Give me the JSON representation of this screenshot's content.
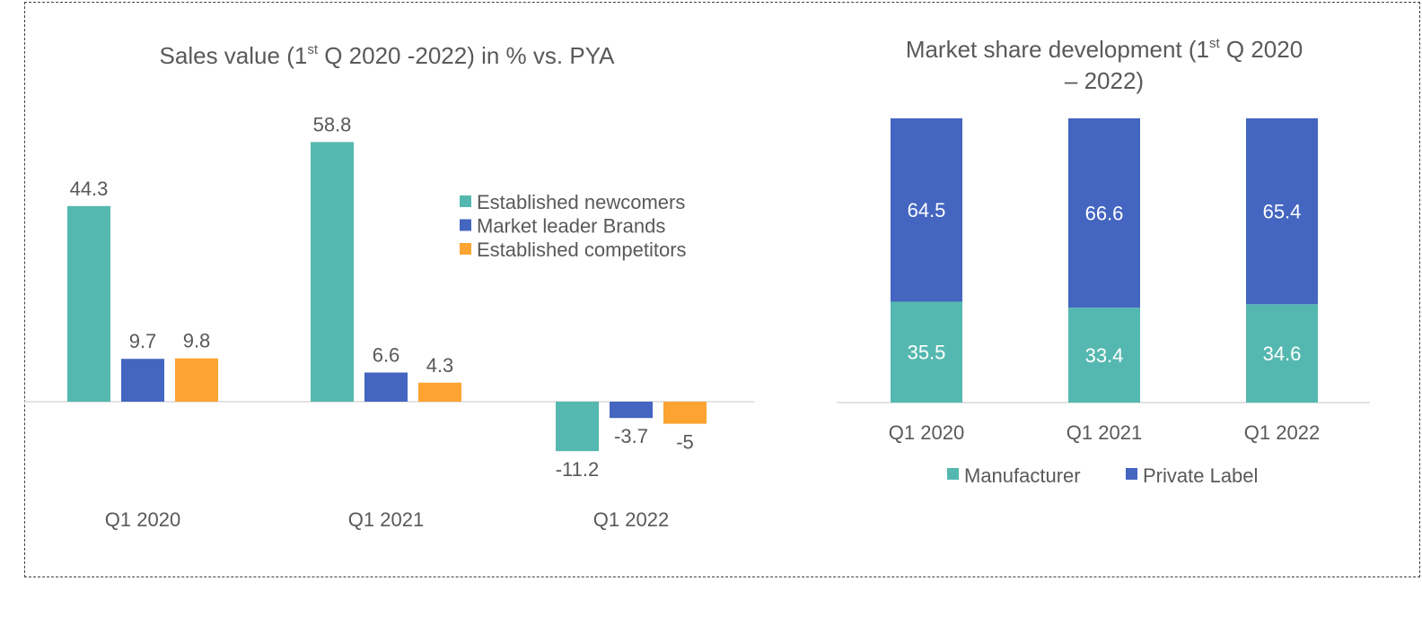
{
  "chart_data": [
    {
      "type": "bar",
      "title": {
        "pre": "Sales value (1",
        "sup": "st",
        "post": " Q 2020 -2022) in % vs. PYA"
      },
      "categories": [
        "Q1 2020",
        "Q1 2021",
        "Q1 2022"
      ],
      "series": [
        {
          "name": "Established newcomers",
          "values": [
            44.3,
            58.8,
            -11.2
          ],
          "labels": [
            "44.3",
            "58.8",
            "-11.2"
          ],
          "color": "#55b8b0"
        },
        {
          "name": "Market leader Brands",
          "values": [
            9.7,
            6.6,
            -3.7
          ],
          "labels": [
            "9.7",
            "6.6",
            "-3.7"
          ],
          "color": "#4465c0"
        },
        {
          "name": "Established competitors",
          "values": [
            9.8,
            4.3,
            -5
          ],
          "labels": [
            "9.8",
            "4.3",
            "-5"
          ],
          "color": "#fca331"
        }
      ],
      "ylim": [
        -20,
        65
      ],
      "grid": false,
      "legend": "center-right"
    },
    {
      "type": "bar",
      "stacked": true,
      "title": {
        "line1_pre": "Market share development (1",
        "line1_sup": "st",
        "line1_post": " Q 2020",
        "line2": "– 2022)"
      },
      "categories": [
        "Q1 2020",
        "Q1 2021",
        "Q1 2022"
      ],
      "series": [
        {
          "name": "Manufacturer",
          "values": [
            35.5,
            33.4,
            34.6
          ],
          "labels": [
            "35.5",
            "33.4",
            "34.6"
          ],
          "color": "#55b8b0"
        },
        {
          "name": "Private Label",
          "values": [
            64.5,
            66.6,
            65.4
          ],
          "labels": [
            "64.5",
            "66.6",
            "65.4"
          ],
          "color": "#4465c0"
        }
      ],
      "ylim": [
        0,
        100
      ],
      "grid": false,
      "legend": "bottom"
    }
  ]
}
